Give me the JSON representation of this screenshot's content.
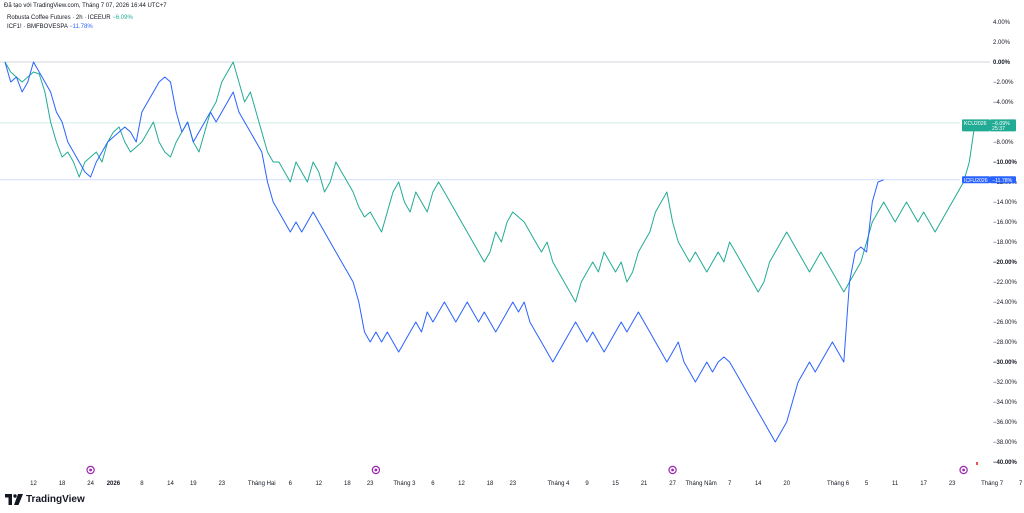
{
  "caption": "Đã tạo với TradingView.com, Tháng 7 07, 2026 16:44 UTC+7",
  "legend": {
    "kc": {
      "name": "Robusta Coffee Futures · 2h · ICEEUR",
      "change": "−6.09%"
    },
    "icf": {
      "name": "ICF1! · BMFBOVESPA",
      "change": "−11.78%"
    }
  },
  "brand": {
    "name": "TradingView"
  },
  "colors": {
    "green": "#22ab94",
    "blue": "#2962ff",
    "zero_line": "#d1d4dc",
    "red_marker": "#ef5350"
  },
  "icons": {
    "event_marker": "purple-circle-icon",
    "logo": "tradingview-logo-icon"
  },
  "chart_data": {
    "type": "line",
    "ylim": [
      -40,
      4
    ],
    "y_axis_position": "right",
    "y_ticks": [
      {
        "value": 4,
        "label": "4.00%"
      },
      {
        "value": 2,
        "label": "2.00%"
      },
      {
        "value": 0,
        "label": "0.00%"
      },
      {
        "value": -2,
        "label": "−2.00%"
      },
      {
        "value": -4,
        "label": "−4.00%"
      },
      {
        "value": -6,
        "label": "−6.00%"
      },
      {
        "value": -8,
        "label": "−8.00%"
      },
      {
        "value": -10,
        "label": "−10.00%"
      },
      {
        "value": -12,
        "label": "−12.00%"
      },
      {
        "value": -14,
        "label": "−14.00%"
      },
      {
        "value": -16,
        "label": "−16.00%"
      },
      {
        "value": -18,
        "label": "−18.00%"
      },
      {
        "value": -20,
        "label": "−20.00%"
      },
      {
        "value": -22,
        "label": "−22.00%"
      },
      {
        "value": -24,
        "label": "−24.00%"
      },
      {
        "value": -26,
        "label": "−26.00%"
      },
      {
        "value": -28,
        "label": "−28.00%"
      },
      {
        "value": -30,
        "label": "−30.00%"
      },
      {
        "value": -32,
        "label": "−32.00%"
      },
      {
        "value": -34,
        "label": "−34.00%"
      },
      {
        "value": -36,
        "label": "−36.00%"
      },
      {
        "value": -38,
        "label": "−38.00%"
      },
      {
        "value": -40,
        "label": "−40.00%"
      }
    ],
    "bold_ticks": [
      "0.00%",
      "−10.00%",
      "−20.00%",
      "−30.00%",
      "−40.00%"
    ],
    "x_ticks": [
      {
        "i": 5,
        "label": "12"
      },
      {
        "i": 10,
        "label": "18"
      },
      {
        "i": 15,
        "label": "24"
      },
      {
        "i": 19,
        "label": "2026",
        "bold": true
      },
      {
        "i": 24,
        "label": "8"
      },
      {
        "i": 29,
        "label": "14"
      },
      {
        "i": 33,
        "label": "19"
      },
      {
        "i": 38,
        "label": "23"
      },
      {
        "i": 45,
        "label": "Tháng Hai"
      },
      {
        "i": 50,
        "label": "6"
      },
      {
        "i": 55,
        "label": "12"
      },
      {
        "i": 60,
        "label": "18"
      },
      {
        "i": 64,
        "label": "23"
      },
      {
        "i": 70,
        "label": "Tháng 3"
      },
      {
        "i": 75,
        "label": "6"
      },
      {
        "i": 80,
        "label": "12"
      },
      {
        "i": 85,
        "label": "18"
      },
      {
        "i": 89,
        "label": "23"
      },
      {
        "i": 97,
        "label": "Tháng 4"
      },
      {
        "i": 102,
        "label": "9"
      },
      {
        "i": 107,
        "label": "15"
      },
      {
        "i": 112,
        "label": "21"
      },
      {
        "i": 117,
        "label": "27"
      },
      {
        "i": 122,
        "label": "Tháng Năm"
      },
      {
        "i": 127,
        "label": "7"
      },
      {
        "i": 132,
        "label": "14"
      },
      {
        "i": 137,
        "label": "20"
      },
      {
        "i": 146,
        "label": "Tháng 6"
      },
      {
        "i": 151,
        "label": "5"
      },
      {
        "i": 156,
        "label": "11"
      },
      {
        "i": 161,
        "label": "17"
      },
      {
        "i": 166,
        "label": "23"
      },
      {
        "i": 173,
        "label": "Tháng 7"
      },
      {
        "i": 178,
        "label": "7"
      }
    ],
    "event_markers": [
      15,
      65,
      117,
      168
    ],
    "last_values": [
      {
        "label": "KCU2026",
        "value_label": "−6.09%",
        "countdown": "25:37",
        "value": -6.09,
        "color": "#22ab94"
      },
      {
        "label": "ICFU2026",
        "value_label": "−11.78%",
        "value": -11.78,
        "color": "#2962ff"
      }
    ],
    "series": [
      {
        "name": "Robusta Coffee Futures",
        "color": "#22ab94",
        "values": [
          0,
          -1,
          -1.5,
          -2,
          -1.5,
          -1,
          -1.2,
          -3,
          -6,
          -8,
          -9.5,
          -9,
          -10,
          -11.5,
          -10,
          -9.5,
          -9,
          -10,
          -8,
          -7,
          -6.5,
          -8,
          -9,
          -8.5,
          -8,
          -7,
          -6,
          -8,
          -9,
          -9.5,
          -8,
          -7,
          -6,
          -8,
          -9,
          -7,
          -5,
          -4,
          -2,
          -1,
          0,
          -2,
          -4,
          -3,
          -5,
          -7,
          -9,
          -10,
          -10,
          -11,
          -12,
          -10,
          -11,
          -12,
          -10,
          -11,
          -13,
          -12,
          -10,
          -11,
          -12,
          -13,
          -14.5,
          -15.5,
          -15,
          -16,
          -17,
          -15,
          -13,
          -12,
          -14,
          -15,
          -13,
          -14,
          -15,
          -13,
          -12,
          -13,
          -14,
          -15,
          -16,
          -17,
          -18,
          -19,
          -20,
          -19,
          -17,
          -18,
          -16,
          -15,
          -15.5,
          -16,
          -17,
          -18,
          -19,
          -18,
          -20,
          -21,
          -22,
          -23,
          -24,
          -22,
          -21,
          -20,
          -21,
          -19,
          -20,
          -21,
          -20,
          -22,
          -21,
          -19,
          -18,
          -17,
          -15,
          -14,
          -13,
          -16,
          -18,
          -19,
          -20,
          -19,
          -20,
          -21,
          -20,
          -19,
          -20,
          -18,
          -19,
          -20,
          -21,
          -22,
          -23,
          -22,
          -20,
          -19,
          -18,
          -17,
          -18,
          -19,
          -20,
          -21,
          -20,
          -19,
          -20,
          -21,
          -22,
          -23,
          -22,
          -21,
          -20,
          -18,
          -16,
          -15,
          -14,
          -15,
          -16,
          -15,
          -14,
          -15,
          -16,
          -15,
          -16,
          -17,
          -16,
          -15,
          -14,
          -13,
          -12,
          -10,
          -6.09
        ]
      },
      {
        "name": "ICF1!",
        "color": "#2962ff",
        "values": [
          0,
          -2,
          -1.5,
          -3,
          -2,
          0,
          -1,
          -2,
          -3,
          -5,
          -6,
          -8,
          -9,
          -10,
          -11,
          -11.5,
          -10,
          -9,
          -8,
          -7.5,
          -7,
          -6.5,
          -7,
          -8,
          -5,
          -4,
          -3,
          -2,
          -1.5,
          -2,
          -5,
          -7,
          -6,
          -8,
          -7,
          -6,
          -5,
          -6,
          -5,
          -4,
          -3,
          -5,
          -6,
          -7,
          -8,
          -9,
          -12,
          -14,
          -15,
          -16,
          -17,
          -16,
          -17,
          -16,
          -15,
          -16,
          -17,
          -18,
          -19,
          -20,
          -21,
          -22,
          -24,
          -27,
          -28,
          -27,
          -28,
          -27,
          -28,
          -29,
          -28,
          -27,
          -26,
          -27,
          -25,
          -26,
          -25,
          -24,
          -25,
          -26,
          -25,
          -24,
          -25,
          -26,
          -25,
          -26,
          -27,
          -26,
          -25,
          -24,
          -25,
          -24,
          -26,
          -27,
          -28,
          -29,
          -30,
          -29,
          -28,
          -27,
          -26,
          -27,
          -28,
          -27,
          -28,
          -29,
          -28,
          -27,
          -26,
          -27,
          -26,
          -25,
          -26,
          -27,
          -28,
          -29,
          -30,
          -29,
          -28,
          -30,
          -31,
          -32,
          -31,
          -30,
          -31,
          -30,
          -29.5,
          -30,
          -31,
          -32,
          -33,
          -34,
          -35,
          -36,
          -37,
          -38,
          -37,
          -36,
          -34,
          -32,
          -31,
          -30,
          -31,
          -30,
          -29,
          -28,
          -29,
          -30,
          -22,
          -19,
          -18.5,
          -19,
          -14,
          -12,
          -11.78
        ]
      }
    ]
  }
}
